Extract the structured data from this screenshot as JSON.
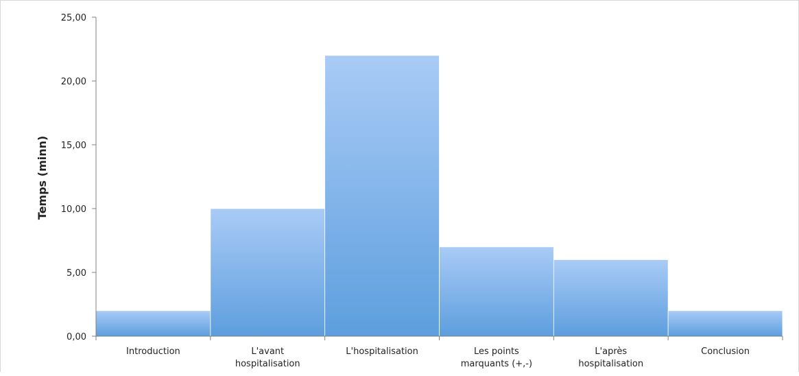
{
  "chart_data": {
    "type": "bar",
    "ylabel": "Temps (minn)",
    "ylim": [
      0,
      25
    ],
    "ytick_step": 5,
    "ytick_labels": [
      "0,00",
      "5,00",
      "10,00",
      "15,00",
      "20,00",
      "25,00"
    ],
    "categories": [
      [
        "Introduction"
      ],
      [
        "L'avant",
        "hospitalisation"
      ],
      [
        "L'hospitalisation"
      ],
      [
        "Les points",
        "marquants (+,-)"
      ],
      [
        "L'après",
        "hospitalisation"
      ],
      [
        "Conclusion"
      ]
    ],
    "values": [
      2,
      10,
      22,
      7,
      6,
      2
    ],
    "grid": false,
    "legend": "none",
    "colors": {
      "bar_top": "#a9cbf6",
      "bar_bottom": "#5d9ede",
      "axis": "#7f7f7f"
    }
  }
}
